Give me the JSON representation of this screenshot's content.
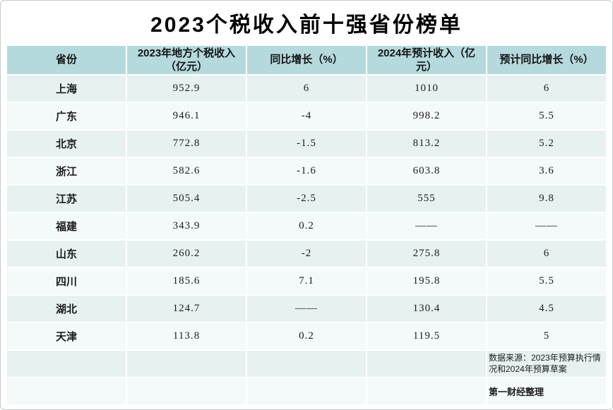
{
  "title": "2023个税收入前十强省份榜单",
  "colors": {
    "header_bg": "#b5dadd",
    "row_odd_bg": "#e7f1f2",
    "row_even_bg": "#f4f9fa",
    "page_bg": "#ffffff",
    "text": "#1c1c1c",
    "card_border": "#c6cbcc"
  },
  "chart_data": {
    "type": "table",
    "title": "2023个税收入前十强省份榜单",
    "columns": [
      "省份",
      "2023年地方个税收入（亿元）",
      "同比增长（%）",
      "2024年预计收入（亿元）",
      "预计同比增长（%）"
    ],
    "rows": [
      [
        "上海",
        "952.9",
        "6",
        "1010",
        "6"
      ],
      [
        "广东",
        "946.1",
        "-4",
        "998.2",
        "5.5"
      ],
      [
        "北京",
        "772.8",
        "-1.5",
        "813.2",
        "5.2"
      ],
      [
        "浙江",
        "582.6",
        "-1.6",
        "603.8",
        "3.6"
      ],
      [
        "江苏",
        "505.4",
        "-2.5",
        "555",
        "9.8"
      ],
      [
        "福建",
        "343.9",
        "0.2",
        "——",
        "——"
      ],
      [
        "山东",
        "260.2",
        "-2",
        "275.8",
        "6"
      ],
      [
        "四川",
        "185.6",
        "7.1",
        "195.8",
        "5.5"
      ],
      [
        "湖北",
        "124.7",
        "——",
        "130.4",
        "4.5"
      ],
      [
        "天津",
        "113.8",
        "0.2",
        "119.5",
        "5"
      ]
    ],
    "source_note": "数据来源：2023年预算执行情况和2024年预算草案",
    "credit_note": "第一财经整理",
    "layout": {
      "grid": "white 2px gaps between cells",
      "row_striping": "odd darker / even lighter",
      "all_cells_centered": true
    }
  }
}
